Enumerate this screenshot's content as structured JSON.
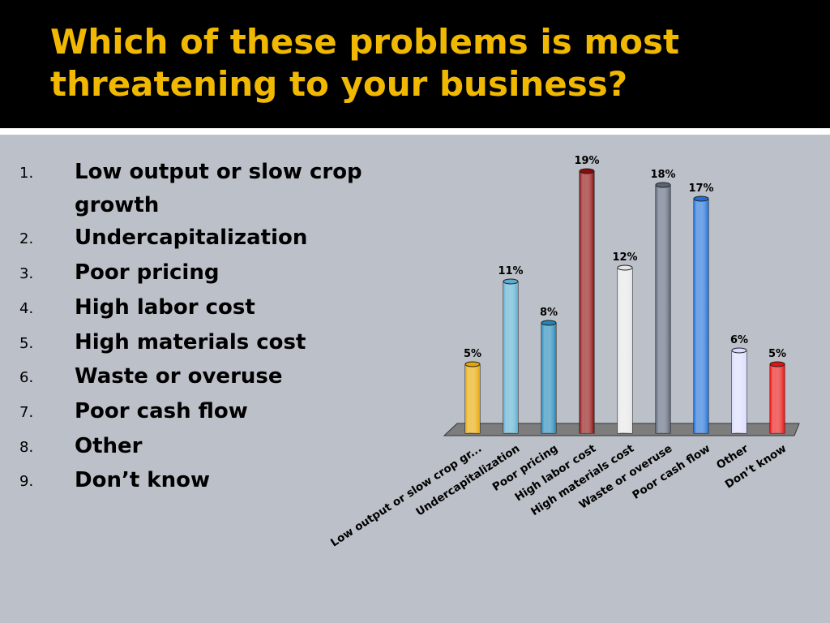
{
  "slide": {
    "title": "Which of these problems is most threatening to your business?",
    "list": [
      {
        "num": "1.",
        "text": "Low output or slow crop growth"
      },
      {
        "num": "2.",
        "text": "Undercapitalization"
      },
      {
        "num": "3.",
        "text": "Poor pricing"
      },
      {
        "num": "4.",
        "text": "High labor cost"
      },
      {
        "num": "5.",
        "text": "High materials cost"
      },
      {
        "num": "6.",
        "text": "Waste or overuse"
      },
      {
        "num": "7.",
        "text": "Poor cash flow"
      },
      {
        "num": "8.",
        "text": "Other"
      },
      {
        "num": "9.",
        "text": "Don’t know"
      }
    ]
  },
  "colors": {
    "title": "#f0b800",
    "background": "#bcc0c8",
    "header": "#000000"
  },
  "chart_data": {
    "type": "bar",
    "categories": [
      "Low output or slow crop gr...",
      "Undercapitalization",
      "Poor pricing",
      "High labor cost",
      "High materials cost",
      "Waste or overuse",
      "Poor cash flow",
      "Other",
      "Don’t know"
    ],
    "values": [
      5,
      11,
      8,
      19,
      12,
      18,
      17,
      6,
      5
    ],
    "value_labels": [
      "5%",
      "11%",
      "8%",
      "19%",
      "12%",
      "18%",
      "17%",
      "6%",
      "5%"
    ],
    "bar_colors": [
      "#e6a800",
      "#5aaed0",
      "#1f86b8",
      "#8c0a0a",
      "#e6e6e6",
      "#5a6478",
      "#1e6fd8",
      "#d9dcff",
      "#e81010"
    ],
    "ylim": [
      0,
      19
    ],
    "grid": false,
    "legend": "none"
  }
}
